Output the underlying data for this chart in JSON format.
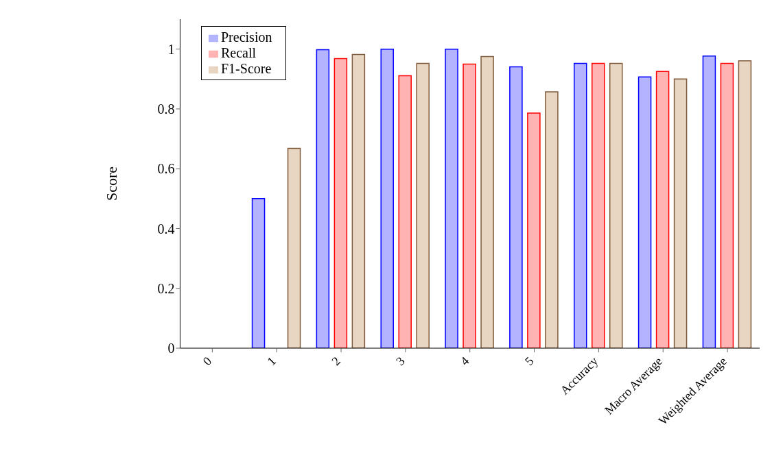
{
  "chart_data": {
    "type": "bar",
    "ylabel": "Score",
    "categories": [
      "0",
      "1",
      "2",
      "3",
      "4",
      "5",
      "Accuracy",
      "Macro Average",
      "Weighted Average"
    ],
    "series": [
      {
        "name": "Precision",
        "color": "#b3b3ff",
        "values": [
          null,
          0.5,
          0.998,
          1.0,
          1.0,
          0.941,
          0.952,
          0.907,
          0.977
        ]
      },
      {
        "name": "Recall",
        "color": "#ffb3b3",
        "values": [
          null,
          null,
          0.968,
          0.911,
          0.95,
          0.786,
          0.952,
          0.925,
          0.952
        ]
      },
      {
        "name": "F1-Score",
        "color": "#e8d6c2",
        "values": [
          null,
          0.668,
          0.982,
          0.952,
          0.975,
          0.857,
          0.952,
          0.9,
          0.961
        ]
      }
    ],
    "ylim": [
      0,
      1.1
    ],
    "yticks": [
      0,
      0.2,
      0.4,
      0.6,
      0.8,
      1
    ],
    "legend": "top left"
  }
}
